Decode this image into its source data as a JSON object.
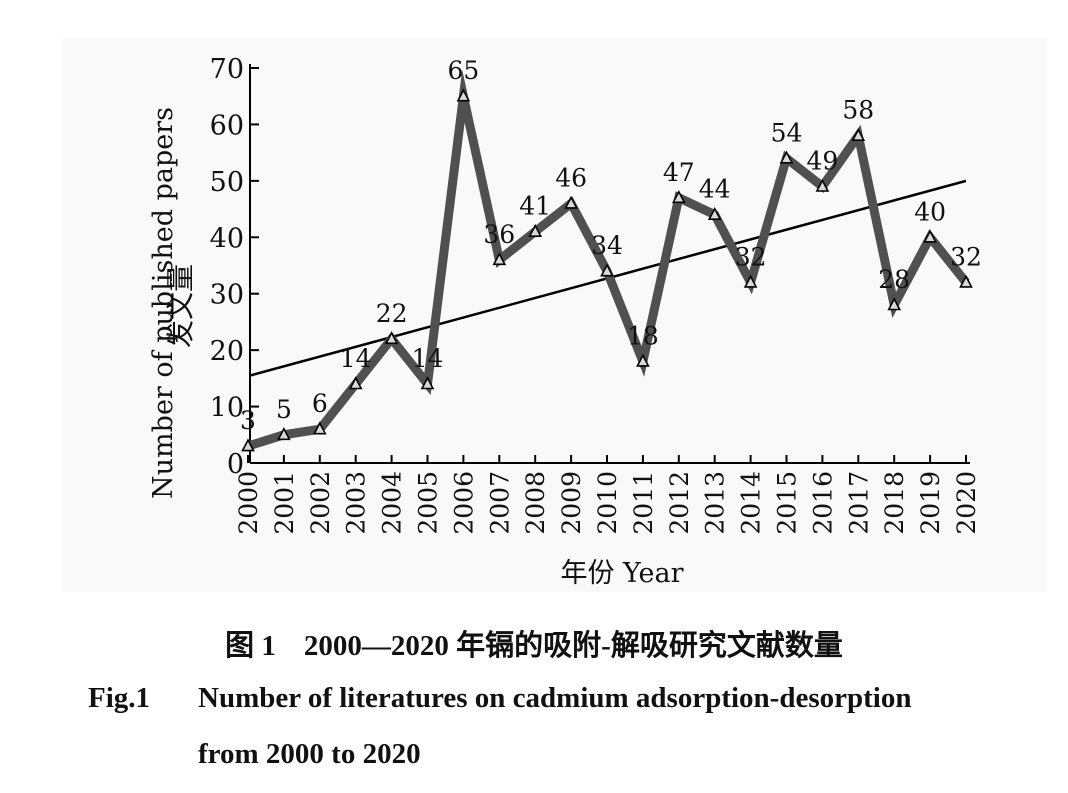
{
  "chart_data": {
    "type": "line",
    "title": "",
    "xlabel": "年份 Year",
    "ylabel_cn": "发文量",
    "ylabel": "Number of published papers",
    "categories": [
      "2000",
      "2001",
      "2002",
      "2003",
      "2004",
      "2005",
      "2006",
      "2007",
      "2008",
      "2009",
      "2010",
      "2011",
      "2012",
      "2013",
      "2014",
      "2015",
      "2016",
      "2017",
      "2018",
      "2019",
      "2020"
    ],
    "values": [
      3,
      5,
      6,
      14,
      22,
      14,
      65,
      36,
      41,
      46,
      34,
      18,
      47,
      44,
      32,
      54,
      49,
      58,
      28,
      40,
      32
    ],
    "data_labels": [
      "3",
      "5",
      "6",
      "14",
      "22",
      "14",
      "65",
      "36",
      "41",
      "46",
      "34",
      "18",
      "47",
      "44",
      "32",
      "54",
      "49",
      "58",
      "28",
      "40",
      "32"
    ],
    "yticks": [
      0,
      10,
      20,
      30,
      40,
      50,
      60,
      70
    ],
    "ylim": [
      0,
      70
    ],
    "trendline": {
      "start": 15.5,
      "end": 50
    },
    "marker": "triangle",
    "grid": false,
    "colors": {
      "series": "#505050",
      "marker_fill": "#d9d9d9",
      "trendline": "#000000",
      "axis": "#000000"
    }
  },
  "caption": {
    "cn_label": "图 1",
    "cn_text": "2000—2020 年镉的吸附-解吸研究文献数量",
    "en_label": "Fig.1",
    "en_line1": "Number of literatures on cadmium adsorption-desorption",
    "en_line2": "from 2000 to 2020"
  }
}
